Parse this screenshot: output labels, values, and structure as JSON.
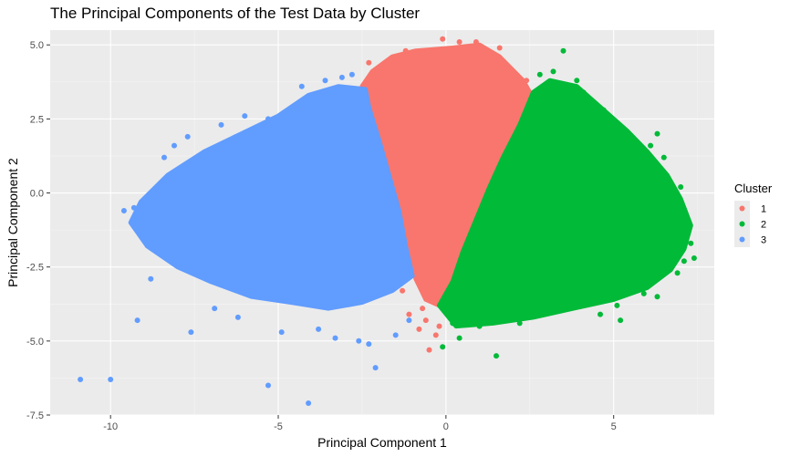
{
  "chart_data": {
    "type": "scatter",
    "title": "The Principal Components of the Test Data by Cluster",
    "xlabel": "Principal Component 1",
    "ylabel": "Principal Component 2",
    "xlim": [
      -11.8,
      8.0
    ],
    "ylim": [
      -7.5,
      5.5
    ],
    "x_ticks": [
      -10,
      -5,
      0,
      5
    ],
    "x_tick_labels": [
      "-10",
      "-5",
      "0",
      "5"
    ],
    "y_ticks": [
      -7.5,
      -5.0,
      -2.5,
      0.0,
      2.5,
      5.0
    ],
    "y_tick_labels": [
      "-7.5",
      "-5.0",
      "-2.5",
      "0.0",
      "2.5",
      "5.0"
    ],
    "grid": true,
    "legend": {
      "title": "Cluster",
      "position": "right",
      "entries": [
        {
          "label": "1",
          "color": "#F8766D"
        },
        {
          "label": "2",
          "color": "#00BA38"
        },
        {
          "label": "3",
          "color": "#619CFF"
        }
      ]
    },
    "series": [
      {
        "name": "1",
        "color": "#F8766D",
        "outline": [
          [
            -2.5,
            3.6
          ],
          [
            -2.2,
            4.1
          ],
          [
            -1.6,
            4.6
          ],
          [
            -0.9,
            4.8
          ],
          [
            0.2,
            4.9
          ],
          [
            1.0,
            5.0
          ],
          [
            1.6,
            4.6
          ],
          [
            2.3,
            3.8
          ],
          [
            2.6,
            3.2
          ],
          [
            2.4,
            2.5
          ],
          [
            1.9,
            1.5
          ],
          [
            1.5,
            0.5
          ],
          [
            1.1,
            -0.5
          ],
          [
            0.7,
            -1.6
          ],
          [
            0.4,
            -2.6
          ],
          [
            0.2,
            -3.4
          ],
          [
            -0.2,
            -3.8
          ],
          [
            -0.6,
            -3.6
          ],
          [
            -0.9,
            -2.9
          ],
          [
            -1.1,
            -1.8
          ],
          [
            -1.4,
            -0.6
          ],
          [
            -1.8,
            0.6
          ],
          [
            -2.2,
            1.8
          ],
          [
            -2.6,
            3.0
          ]
        ],
        "points": [
          [
            -0.6,
            -4.3
          ],
          [
            -0.8,
            -4.6
          ],
          [
            -0.5,
            -5.3
          ],
          [
            -1.1,
            -4.1
          ],
          [
            -0.3,
            -4.8
          ],
          [
            0.2,
            -3.9
          ],
          [
            -0.7,
            -3.9
          ],
          [
            -0.2,
            -4.5
          ],
          [
            0.4,
            5.1
          ],
          [
            -0.1,
            5.2
          ],
          [
            0.9,
            5.1
          ],
          [
            1.1,
            4.8
          ],
          [
            -1.2,
            4.8
          ],
          [
            -2.3,
            4.4
          ],
          [
            2.4,
            3.8
          ],
          [
            2.5,
            2.9
          ],
          [
            1.6,
            4.9
          ],
          [
            -1.8,
            4.3
          ],
          [
            -2.7,
            3.1
          ],
          [
            0.6,
            -3.6
          ],
          [
            -1.3,
            -3.3
          ]
        ]
      },
      {
        "name": "2",
        "color": "#00BA38",
        "outline": [
          [
            2.6,
            3.4
          ],
          [
            3.1,
            3.8
          ],
          [
            3.9,
            3.6
          ],
          [
            4.7,
            2.8
          ],
          [
            5.4,
            2.1
          ],
          [
            6.0,
            1.4
          ],
          [
            6.6,
            0.6
          ],
          [
            7.0,
            -0.2
          ],
          [
            7.3,
            -1.1
          ],
          [
            7.1,
            -1.9
          ],
          [
            6.7,
            -2.6
          ],
          [
            6.0,
            -3.2
          ],
          [
            5.0,
            -3.6
          ],
          [
            3.8,
            -3.9
          ],
          [
            2.6,
            -4.2
          ],
          [
            1.4,
            -4.4
          ],
          [
            0.3,
            -4.5
          ],
          [
            -0.2,
            -3.8
          ],
          [
            0.2,
            -3.0
          ],
          [
            0.5,
            -2.0
          ],
          [
            0.9,
            -0.9
          ],
          [
            1.3,
            0.2
          ],
          [
            1.7,
            1.2
          ],
          [
            2.2,
            2.3
          ]
        ],
        "points": [
          [
            3.2,
            4.1
          ],
          [
            2.8,
            4.0
          ],
          [
            3.9,
            3.8
          ],
          [
            4.1,
            3.4
          ],
          [
            4.7,
            2.8
          ],
          [
            6.3,
            2.0
          ],
          [
            6.1,
            1.6
          ],
          [
            6.5,
            1.2
          ],
          [
            7.0,
            0.2
          ],
          [
            7.2,
            -1.0
          ],
          [
            7.3,
            -1.7
          ],
          [
            7.4,
            -2.2
          ],
          [
            7.1,
            -2.3
          ],
          [
            6.9,
            -2.7
          ],
          [
            6.3,
            -3.5
          ],
          [
            5.9,
            -3.4
          ],
          [
            5.1,
            -3.8
          ],
          [
            5.2,
            -4.3
          ],
          [
            4.6,
            -4.1
          ],
          [
            1.5,
            -5.5
          ],
          [
            -0.1,
            -5.2
          ],
          [
            0.2,
            -4.4
          ],
          [
            0.4,
            -4.9
          ],
          [
            1.0,
            -4.5
          ],
          [
            2.2,
            -4.4
          ],
          [
            3.5,
            4.8
          ]
        ]
      },
      {
        "name": "3",
        "color": "#619CFF",
        "outline": [
          [
            -2.4,
            3.5
          ],
          [
            -3.2,
            3.6
          ],
          [
            -4.1,
            3.3
          ],
          [
            -5.0,
            2.6
          ],
          [
            -6.1,
            2.0
          ],
          [
            -7.2,
            1.4
          ],
          [
            -8.3,
            0.6
          ],
          [
            -9.1,
            -0.3
          ],
          [
            -9.4,
            -1.0
          ],
          [
            -8.9,
            -1.8
          ],
          [
            -8.0,
            -2.5
          ],
          [
            -7.0,
            -3.0
          ],
          [
            -5.8,
            -3.5
          ],
          [
            -4.6,
            -3.7
          ],
          [
            -3.5,
            -3.9
          ],
          [
            -2.5,
            -3.7
          ],
          [
            -1.6,
            -3.3
          ],
          [
            -1.0,
            -2.8
          ],
          [
            -1.2,
            -1.8
          ],
          [
            -1.4,
            -0.6
          ],
          [
            -1.7,
            0.6
          ],
          [
            -2.0,
            1.8
          ],
          [
            -2.3,
            2.9
          ]
        ],
        "points": [
          [
            -10.9,
            -6.3
          ],
          [
            -10.0,
            -6.3
          ],
          [
            -4.1,
            -7.1
          ],
          [
            -5.3,
            -6.5
          ],
          [
            -2.1,
            -5.9
          ],
          [
            -7.6,
            -4.7
          ],
          [
            -9.2,
            -4.3
          ],
          [
            -3.3,
            -4.9
          ],
          [
            -2.6,
            -5.0
          ],
          [
            -2.3,
            -5.1
          ],
          [
            -4.9,
            -4.7
          ],
          [
            -9.3,
            -0.5
          ],
          [
            -9.6,
            -0.6
          ],
          [
            -8.4,
            1.2
          ],
          [
            -8.1,
            1.6
          ],
          [
            -7.7,
            1.9
          ],
          [
            -6.7,
            2.3
          ],
          [
            -5.3,
            2.5
          ],
          [
            -4.3,
            3.6
          ],
          [
            -3.6,
            3.8
          ],
          [
            -3.1,
            3.9
          ],
          [
            -2.8,
            4.0
          ],
          [
            -6.0,
            2.6
          ],
          [
            -8.8,
            -2.9
          ],
          [
            -8.5,
            -2.0
          ],
          [
            -6.9,
            -3.9
          ],
          [
            -6.2,
            -4.2
          ],
          [
            -3.8,
            -4.6
          ],
          [
            -1.5,
            -4.8
          ],
          [
            -1.1,
            -4.3
          ]
        ]
      }
    ]
  }
}
